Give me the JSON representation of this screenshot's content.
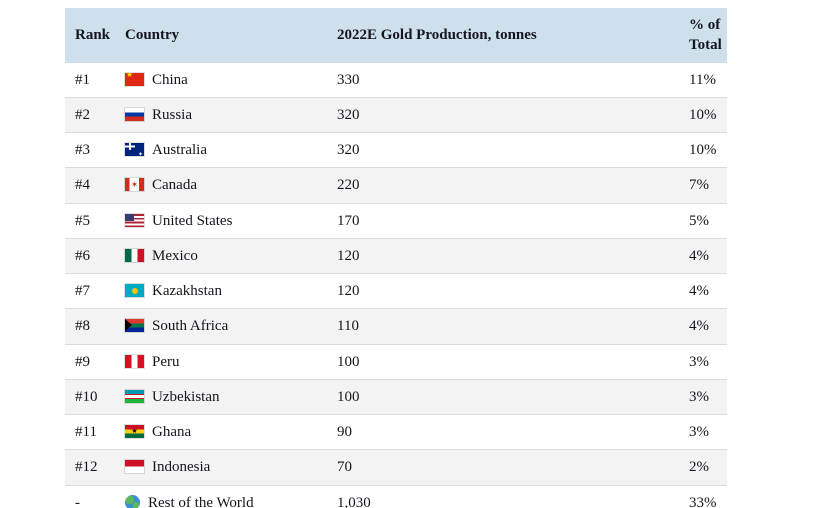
{
  "chart_data": {
    "type": "table",
    "title": "2022E Gold Production, tonnes",
    "columns": [
      "Rank",
      "Country",
      "2022E Gold Production, tonnes",
      "% of Total"
    ],
    "rows": [
      {
        "rank": "#1",
        "country": "China",
        "flag": "china",
        "production": "330",
        "percent": "11%"
      },
      {
        "rank": "#2",
        "country": "Russia",
        "flag": "russia",
        "production": "320",
        "percent": "10%"
      },
      {
        "rank": "#3",
        "country": "Australia",
        "flag": "australia",
        "production": "320",
        "percent": "10%"
      },
      {
        "rank": "#4",
        "country": "Canada",
        "flag": "canada",
        "production": "220",
        "percent": "7%"
      },
      {
        "rank": "#5",
        "country": "United States",
        "flag": "usa",
        "production": "170",
        "percent": "5%"
      },
      {
        "rank": "#6",
        "country": "Mexico",
        "flag": "mexico",
        "production": "120",
        "percent": "4%"
      },
      {
        "rank": "#7",
        "country": "Kazakhstan",
        "flag": "kazakhstan",
        "production": "120",
        "percent": "4%"
      },
      {
        "rank": "#8",
        "country": "South Africa",
        "flag": "south-africa",
        "production": "110",
        "percent": "4%"
      },
      {
        "rank": "#9",
        "country": "Peru",
        "flag": "peru",
        "production": "100",
        "percent": "3%"
      },
      {
        "rank": "#10",
        "country": "Uzbekistan",
        "flag": "uzbekistan",
        "production": "100",
        "percent": "3%"
      },
      {
        "rank": "#11",
        "country": "Ghana",
        "flag": "ghana",
        "production": "90",
        "percent": "3%"
      },
      {
        "rank": "#12",
        "country": "Indonesia",
        "flag": "indonesia",
        "production": "70",
        "percent": "2%"
      },
      {
        "rank": "-",
        "country": "Rest of the World",
        "flag": "world",
        "production": "1,030",
        "percent": "33%"
      }
    ]
  }
}
